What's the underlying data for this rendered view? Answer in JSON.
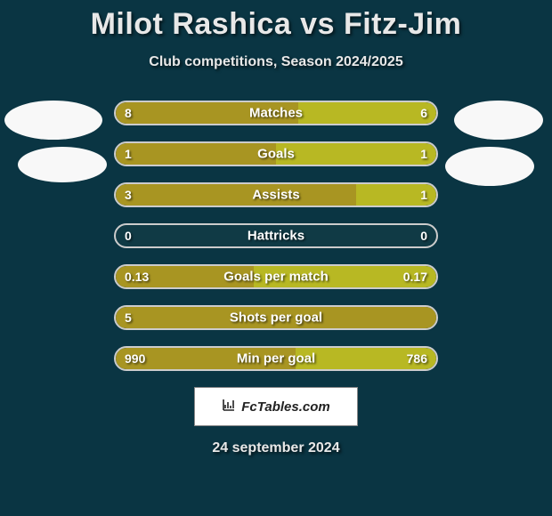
{
  "title": "Milot Rashica vs Fitz-Jim",
  "subtitle": "Club competitions, Season 2024/2025",
  "date": "24 september 2024",
  "watermark": "FcTables.com",
  "colors": {
    "background": "#0a3543",
    "bar_border": "#cccccc",
    "bar_bg": "#103a45",
    "bar_left": "#a89522",
    "bar_right": "#b8b823",
    "text": "#e8e8e8"
  },
  "bars": [
    {
      "label": "Matches",
      "left": "8",
      "right": "6",
      "left_pct": 57,
      "right_pct": 43,
      "left_color": "#a89522",
      "right_color": "#b8b823"
    },
    {
      "label": "Goals",
      "left": "1",
      "right": "1",
      "left_pct": 50,
      "right_pct": 50,
      "left_color": "#a89522",
      "right_color": "#b8b823"
    },
    {
      "label": "Assists",
      "left": "3",
      "right": "1",
      "left_pct": 75,
      "right_pct": 25,
      "left_color": "#a89522",
      "right_color": "#b8b823"
    },
    {
      "label": "Hattricks",
      "left": "0",
      "right": "0",
      "left_pct": 0,
      "right_pct": 0,
      "left_color": "#a89522",
      "right_color": "#b8b823"
    },
    {
      "label": "Goals per match",
      "left": "0.13",
      "right": "0.17",
      "left_pct": 43,
      "right_pct": 57,
      "left_color": "#a89522",
      "right_color": "#b8b823"
    },
    {
      "label": "Shots per goal",
      "left": "5",
      "right": "",
      "left_pct": 100,
      "right_pct": 0,
      "left_color": "#a89522",
      "right_color": "#b8b823"
    },
    {
      "label": "Min per goal",
      "left": "990",
      "right": "786",
      "left_pct": 56,
      "right_pct": 44,
      "left_color": "#a89522",
      "right_color": "#b8b823"
    }
  ]
}
